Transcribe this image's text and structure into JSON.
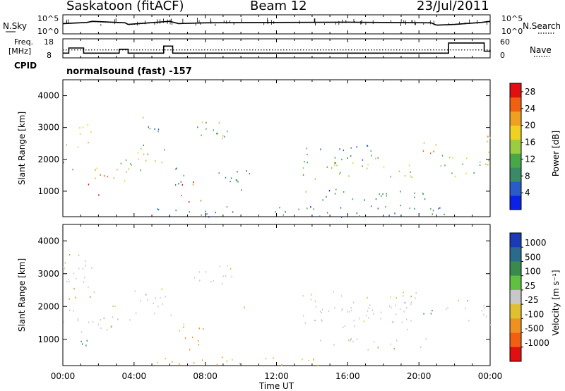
{
  "header": {
    "station": "Saskatoon (fitACF)",
    "beam": "Beam 12",
    "date": "23/Jul/2011"
  },
  "aux_labels": {
    "nsky": "N.Sky",
    "nsearch": "N.Search",
    "freq_line1": "Freq.",
    "freq_line2": "[MHz]",
    "nave": "Nave",
    "cpid": "CPID",
    "cpid_value": "normalsound (fast) -157",
    "noise_ticks": [
      "10^5",
      "10^0"
    ],
    "freq_ticks": [
      "18",
      "8"
    ],
    "nave_ticks": [
      "60",
      "0"
    ]
  },
  "colors": {
    "power_scale": [
      "#0a22e6",
      "#2a5cc8",
      "#3a8a68",
      "#48a848",
      "#9ccc40",
      "#f0d020",
      "#f0a020",
      "#f06010",
      "#e01010"
    ],
    "velocity_scale": [
      "#1a3ab8",
      "#2a6a8a",
      "#3a8a50",
      "#60c040",
      "#c8c8c8",
      "#e0c030",
      "#f09020",
      "#f06010",
      "#e01010"
    ]
  },
  "chart_data": [
    {
      "type": "line",
      "panel": "noise",
      "xlabel": "",
      "ylabel": "N.Sky",
      "y_scale": "log",
      "ylim": [
        "10^0",
        "10^5"
      ],
      "x": [
        "00:00",
        "01:20",
        "01:40",
        "03:30",
        "03:40",
        "06:00",
        "06:30",
        "08:00",
        "12:00",
        "16:00",
        "20:40",
        "21:00",
        "22:00",
        "23:30",
        "24:00"
      ],
      "series": [
        {
          "name": "N.Sky",
          "values": [
            500,
            1000,
            2000,
            800,
            300,
            2000,
            500,
            800,
            1000,
            1200,
            800,
            200,
            300,
            1000,
            2000
          ]
        },
        {
          "name": "N.Search",
          "values": [
            400,
            900,
            1500,
            700,
            250,
            1800,
            450,
            700,
            900,
            1100,
            700,
            180,
            280,
            900,
            1500
          ]
        }
      ]
    },
    {
      "type": "line",
      "panel": "frequency",
      "ylabel": "Freq. [MHz]",
      "ylim": [
        8,
        18
      ],
      "y2label": "Nave",
      "y2lim": [
        0,
        60
      ],
      "x": [
        "00:00",
        "00:20",
        "01:10",
        "03:10",
        "03:40",
        "05:40",
        "06:10",
        "20:40",
        "21:40",
        "23:40",
        "24:00"
      ],
      "series": [
        {
          "name": "Freq.",
          "values": [
            10.5,
            13.2,
            10.5,
            12.5,
            10.5,
            14.2,
            10.5,
            10.5,
            15.8,
            11.5,
            12
          ]
        },
        {
          "name": "Nave",
          "values": [
            25,
            25,
            25,
            25,
            25,
            25,
            25,
            25,
            25,
            25,
            25
          ]
        }
      ]
    },
    {
      "type": "heatmap",
      "panel": "power",
      "ylabel": "Slant Range [km]",
      "ylim": [
        200,
        4500
      ],
      "yticks": [
        "1000",
        "2000",
        "3000",
        "4000"
      ],
      "xlim": [
        "00:00",
        "24:00"
      ],
      "colorbar_label": "Power [dB]",
      "colorbar_ticks": [
        "4",
        "8",
        "12",
        "16",
        "20",
        "24",
        "28"
      ],
      "colorbar_range": [
        0,
        30
      ],
      "features": [
        {
          "t0": 0.0,
          "t1": 0.6,
          "r0": 1300,
          "r1": 2800,
          "dB": 12
        },
        {
          "t0": 0.6,
          "t1": 1.6,
          "r0": 2200,
          "r1": 3500,
          "dB": 20
        },
        {
          "t0": 1.0,
          "t1": 2.6,
          "r0": 1200,
          "r1": 1900,
          "dB": 24
        },
        {
          "t0": 1.6,
          "t1": 2.0,
          "r0": 500,
          "r1": 1000,
          "dB": 28
        },
        {
          "t0": 2.5,
          "t1": 3.8,
          "r0": 1300,
          "r1": 2200,
          "dB": 14
        },
        {
          "t0": 3.8,
          "t1": 5.8,
          "r0": 1600,
          "r1": 2500,
          "dB": 16
        },
        {
          "t0": 4.0,
          "t1": 5.6,
          "r0": 2800,
          "r1": 3400,
          "dB": 8
        },
        {
          "t0": 6.0,
          "t1": 6.8,
          "r0": 1000,
          "r1": 2000,
          "dB": 10
        },
        {
          "t0": 6.6,
          "t1": 7.8,
          "r0": 600,
          "r1": 1400,
          "dB": 28
        },
        {
          "t0": 7.3,
          "t1": 9.6,
          "r0": 2500,
          "r1": 3300,
          "dB": 12
        },
        {
          "t0": 8.5,
          "t1": 10.5,
          "r0": 1000,
          "r1": 1900,
          "dB": 8
        },
        {
          "t0": 13.3,
          "t1": 20.3,
          "r0": 1400,
          "r1": 2000,
          "dB": 14
        },
        {
          "t0": 13.5,
          "t1": 18.0,
          "r0": 1900,
          "r1": 2500,
          "dB": 10
        },
        {
          "t0": 13.3,
          "t1": 20.5,
          "r0": 700,
          "r1": 1100,
          "dB": 9
        },
        {
          "t0": 20.2,
          "t1": 21.0,
          "r0": 1800,
          "r1": 2600,
          "dB": 26
        },
        {
          "t0": 21.2,
          "t1": 24.0,
          "r0": 1400,
          "r1": 2200,
          "dB": 14
        },
        {
          "t0": 23.6,
          "t1": 24.0,
          "r0": 1800,
          "r1": 2800,
          "dB": 18
        },
        {
          "t0": 5.0,
          "t1": 22.0,
          "r0": 200,
          "r1": 600,
          "dB": 8
        }
      ]
    },
    {
      "type": "heatmap",
      "panel": "velocity",
      "ylabel": "Slant Range [km]",
      "ylim": [
        200,
        4500
      ],
      "yticks": [
        "1000",
        "2000",
        "3000",
        "4000"
      ],
      "xlim": [
        "00:00",
        "24:00"
      ],
      "xlabel": "Time UT",
      "xticks": [
        "00:00",
        "04:00",
        "08:00",
        "12:00",
        "16:00",
        "20:00",
        "00:00"
      ],
      "colorbar_label": "Velocity [m s⁻¹]",
      "colorbar_ticks": [
        "1000",
        "500",
        "100",
        "25",
        "-25",
        "-100",
        "-500",
        "-1000"
      ],
      "features": [
        {
          "t0": 0.0,
          "t1": 1.8,
          "r0": 2200,
          "r1": 3600,
          "v": 0
        },
        {
          "t0": 0.0,
          "t1": 1.0,
          "r0": 1300,
          "r1": 2100,
          "v": 0
        },
        {
          "t0": 0.2,
          "t1": 0.7,
          "r0": 2100,
          "r1": 2700,
          "v": -150
        },
        {
          "t0": 1.0,
          "t1": 2.6,
          "r0": 1100,
          "r1": 1900,
          "v": 0
        },
        {
          "t0": 1.0,
          "t1": 2.0,
          "r0": 500,
          "r1": 1100,
          "v": 200
        },
        {
          "t0": 2.5,
          "t1": 3.8,
          "r0": 1300,
          "r1": 2200,
          "v": 0
        },
        {
          "t0": 3.8,
          "t1": 5.8,
          "r0": 1700,
          "r1": 2600,
          "v": 0
        },
        {
          "t0": 6.0,
          "t1": 6.8,
          "r0": 1200,
          "r1": 2000,
          "v": 0
        },
        {
          "t0": 6.7,
          "t1": 7.9,
          "r0": 700,
          "r1": 1500,
          "v": -200
        },
        {
          "t0": 7.3,
          "t1": 9.6,
          "r0": 2500,
          "r1": 3300,
          "v": 0
        },
        {
          "t0": 9.7,
          "t1": 10.2,
          "r0": 1600,
          "r1": 2300,
          "v": -150
        },
        {
          "t0": 13.3,
          "t1": 20.3,
          "r0": 1300,
          "r1": 2500,
          "v": 0
        },
        {
          "t0": 13.3,
          "t1": 20.5,
          "r0": 700,
          "r1": 1100,
          "v": 0
        },
        {
          "t0": 20.2,
          "t1": 21.0,
          "r0": 1800,
          "r1": 2500,
          "v": 150
        },
        {
          "t0": 21.2,
          "t1": 24.0,
          "r0": 1400,
          "r1": 2300,
          "v": 0
        },
        {
          "t0": 5.0,
          "t1": 14.5,
          "r0": 200,
          "r1": 500,
          "v": -60
        }
      ]
    }
  ]
}
